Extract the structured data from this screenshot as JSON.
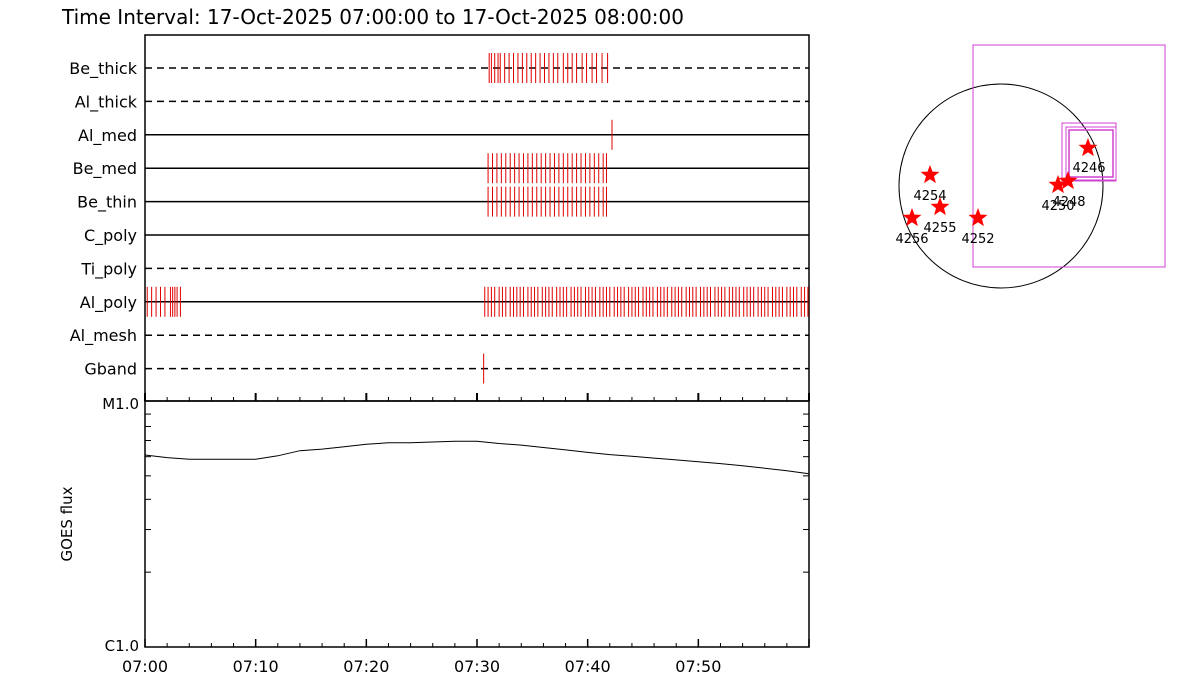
{
  "title": "Time Interval: 17-Oct-2025 07:00:00 to 17-Oct-2025 08:00:00",
  "chart_data": [
    {
      "type": "timeline",
      "x_range": [
        "07:00",
        "08:00"
      ],
      "channels": [
        {
          "label": "Be_thick",
          "style": "dashed",
          "events_min": [
            31.1,
            31.3,
            31.6,
            31.9,
            32.1,
            32.5,
            32.9,
            33.3,
            33.7,
            34.1,
            34.5,
            34.9,
            35.3,
            35.7,
            36.1,
            36.5,
            36.9,
            37.3,
            37.8,
            38.2,
            38.6,
            39.0,
            39.5,
            39.9,
            40.4,
            40.8,
            41.3,
            41.8
          ]
        },
        {
          "label": "Al_thick",
          "style": "dashed",
          "events_min": []
        },
        {
          "label": "Al_med",
          "style": "solid",
          "events_min": [
            42.2
          ]
        },
        {
          "label": "Be_med",
          "style": "solid",
          "events_min": [
            31.0,
            31.4,
            31.8,
            32.2,
            32.6,
            33.0,
            33.4,
            33.8,
            34.2,
            34.6,
            35.0,
            35.4,
            35.8,
            36.2,
            36.6,
            37.0,
            37.4,
            37.8,
            38.2,
            38.6,
            39.0,
            39.4,
            39.8,
            40.2,
            40.6,
            41.0,
            41.4,
            41.7
          ]
        },
        {
          "label": "Be_thin",
          "style": "solid",
          "events_min": [
            31.0,
            31.4,
            31.8,
            32.2,
            32.6,
            33.0,
            33.4,
            33.8,
            34.2,
            34.6,
            35.0,
            35.4,
            35.8,
            36.2,
            36.6,
            37.0,
            37.4,
            37.8,
            38.2,
            38.6,
            39.0,
            39.4,
            39.8,
            40.2,
            40.6,
            41.0,
            41.4,
            41.7
          ]
        },
        {
          "label": "C_poly",
          "style": "solid",
          "events_min": []
        },
        {
          "label": "Ti_poly",
          "style": "dashed",
          "events_min": []
        },
        {
          "label": "Al_poly",
          "style": "solid",
          "events_min": [
            0.2,
            0.6,
            1.0,
            1.4,
            1.8,
            2.3,
            2.5,
            2.7,
            2.9,
            3.2,
            30.7,
            31.0,
            31.3,
            31.6,
            32.0,
            32.3,
            32.6,
            33.0,
            33.3,
            33.6,
            33.9,
            34.2,
            34.6,
            34.9,
            35.2,
            35.5,
            35.9,
            36.2,
            36.5,
            36.8,
            37.2,
            37.5,
            37.8,
            38.1,
            38.5,
            38.8,
            39.1,
            39.4,
            39.8,
            40.1,
            40.4,
            40.7,
            41.1,
            41.4,
            41.7,
            42.0,
            42.4,
            42.7,
            43.0,
            43.3,
            43.7,
            44.0,
            44.3,
            44.6,
            45.0,
            45.3,
            45.6,
            45.9,
            46.3,
            46.6,
            46.9,
            47.2,
            47.6,
            47.9,
            48.2,
            48.5,
            48.9,
            49.2,
            49.5,
            49.8,
            50.2,
            50.5,
            50.8,
            51.1,
            51.5,
            51.8,
            52.1,
            52.4,
            52.8,
            53.1,
            53.4,
            53.7,
            54.1,
            54.4,
            54.7,
            55.0,
            55.4,
            55.7,
            56.0,
            56.3,
            56.7,
            57.0,
            57.3,
            57.6,
            58.0,
            58.3,
            58.6,
            58.9,
            59.3,
            59.6,
            59.9
          ]
        },
        {
          "label": "Al_mesh",
          "style": "dashed",
          "events_min": []
        },
        {
          "label": "Gband",
          "style": "dashed",
          "events_min": [
            30.6
          ]
        }
      ]
    },
    {
      "type": "line",
      "ylabel": "GOES flux",
      "y_scale": "log",
      "y_tick_labels": [
        "C1.0",
        "M1.0"
      ],
      "ylim": [
        1e-06,
        1e-05
      ],
      "x_tick_labels": [
        "07:00",
        "07:10",
        "07:20",
        "07:30",
        "07:40",
        "07:50"
      ],
      "x_minutes": [
        0,
        2,
        4,
        6,
        8,
        10,
        12,
        14,
        16,
        18,
        20,
        22,
        24,
        26,
        28,
        30,
        32,
        34,
        36,
        38,
        40,
        42,
        44,
        46,
        48,
        50,
        52,
        54,
        56,
        58,
        60
      ],
      "values": [
        6.1e-06,
        5.95e-06,
        5.85e-06,
        5.85e-06,
        5.85e-06,
        5.85e-06,
        6.05e-06,
        6.35e-06,
        6.45e-06,
        6.6e-06,
        6.75e-06,
        6.85e-06,
        6.85e-06,
        6.9e-06,
        6.95e-06,
        6.95e-06,
        6.8e-06,
        6.7e-06,
        6.55e-06,
        6.4e-06,
        6.25e-06,
        6.12e-06,
        6.02e-06,
        5.92e-06,
        5.82e-06,
        5.72e-06,
        5.62e-06,
        5.5e-06,
        5.38e-06,
        5.25e-06,
        5.1e-06
      ]
    },
    {
      "type": "scatter",
      "points": [
        {
          "label": "4246"
        },
        {
          "label": "4248"
        },
        {
          "label": "4250"
        },
        {
          "label": "4252"
        },
        {
          "label": "4254"
        },
        {
          "label": "4255"
        },
        {
          "label": "4256"
        }
      ]
    }
  ]
}
